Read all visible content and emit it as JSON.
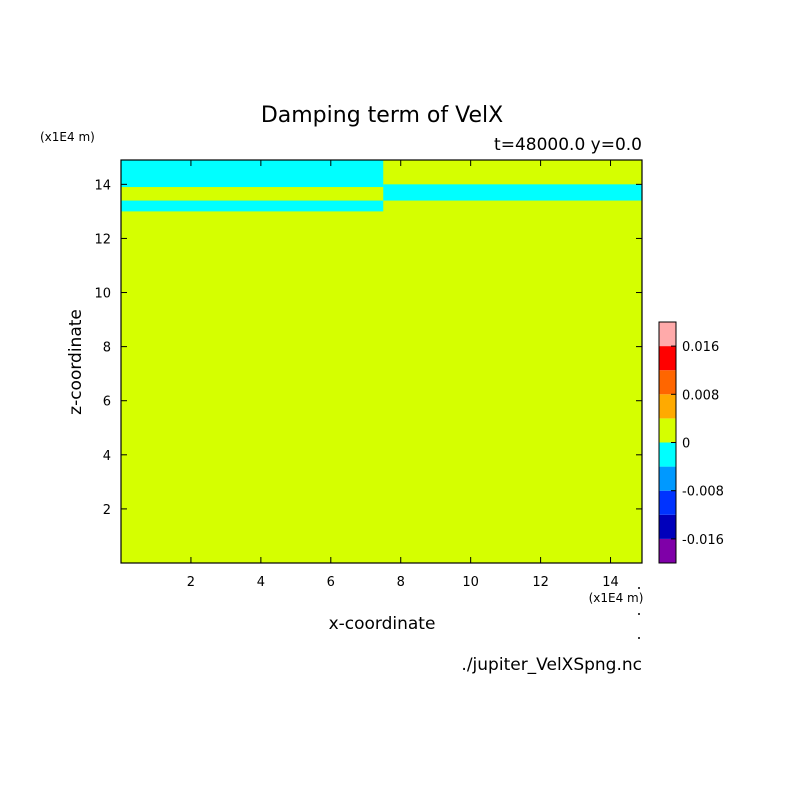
{
  "chart_data": {
    "type": "heatmap",
    "title": "Damping term of VelX",
    "subtitle": "t=48000.0 y=0.0",
    "xlabel": "x-coordinate",
    "ylabel": "z-coordinate",
    "x_unit": "(x1E4 m)",
    "y_unit": "(x1E4 m)",
    "xlim": [
      0,
      14.9
    ],
    "ylim": [
      0,
      14.9
    ],
    "x_ticks": [
      2,
      4,
      6,
      8,
      10,
      12,
      14
    ],
    "y_ticks": [
      2,
      4,
      6,
      8,
      10,
      12,
      14
    ],
    "x_tick_labels": [
      "2",
      "4",
      "6",
      "8",
      "10",
      "12",
      "14"
    ],
    "y_tick_labels": [
      "2",
      "4",
      "6",
      "8",
      "10",
      "12",
      "14"
    ],
    "background_value": 0,
    "regions": [
      {
        "x0": 0.0,
        "x1": 7.5,
        "z0": 13.9,
        "z1": 14.9,
        "value": -0.002
      },
      {
        "x0": 0.0,
        "x1": 7.5,
        "z0": 13.0,
        "z1": 13.4,
        "value": -0.002
      },
      {
        "x0": 7.5,
        "x1": 14.9,
        "z0": 13.4,
        "z1": 14.0,
        "value": -0.002
      }
    ],
    "colorbar": {
      "levels": [
        -0.02,
        -0.016,
        -0.012,
        -0.008,
        -0.004,
        0,
        0.004,
        0.008,
        0.012,
        0.016,
        0.02
      ],
      "colors": [
        "#7f00a8",
        "#0000bb",
        "#0033ff",
        "#0099ff",
        "#00ffff",
        "#d5ff00",
        "#ffaa00",
        "#ff6600",
        "#ff0000",
        "#ffaaaa"
      ],
      "tick_values": [
        0.016,
        0.008,
        0,
        -0.008,
        -0.016
      ],
      "tick_labels": [
        "0.016",
        "0.008",
        "0",
        "-0.008",
        "-0.016"
      ]
    },
    "grid": false,
    "legend": "right (colorbar)"
  },
  "source_file": "./jupiter_VelXSpng.nc"
}
